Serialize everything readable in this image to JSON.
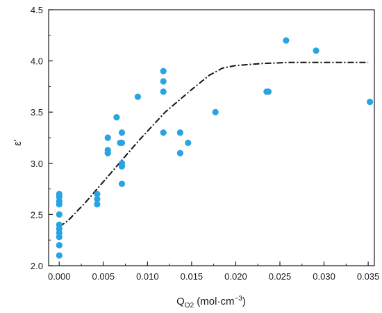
{
  "chart_data": {
    "type": "scatter",
    "xlabel": "Q",
    "xlabel_sub": "O2",
    "xlabel_units": " (mol·cm",
    "xlabel_exp": "−3",
    "xlabel_close": ")",
    "ylabel": "ε'",
    "xlim": [
      -0.0012,
      0.0357
    ],
    "ylim": [
      2.0,
      4.5
    ],
    "xticks": [
      0.0,
      0.005,
      0.01,
      0.015,
      0.02,
      0.025,
      0.03,
      0.035
    ],
    "xtick_labels": [
      "0.000",
      "0.005",
      "0.010",
      "0.015",
      "0.020",
      "0.025",
      "0.030",
      "0.035"
    ],
    "yticks": [
      2.0,
      2.5,
      3.0,
      3.5,
      4.0,
      4.5
    ],
    "ytick_labels": [
      "2.0",
      "2.5",
      "3.0",
      "3.5",
      "4.0",
      "4.5"
    ],
    "grid": false,
    "marker_color": "#29a3e3",
    "fit_color": "#111111",
    "points": [
      {
        "x": 0.0,
        "y": 2.1
      },
      {
        "x": 0.0,
        "y": 2.2
      },
      {
        "x": 0.0,
        "y": 2.28
      },
      {
        "x": 0.0,
        "y": 2.32
      },
      {
        "x": 0.0,
        "y": 2.36
      },
      {
        "x": 0.0,
        "y": 2.4
      },
      {
        "x": 0.0,
        "y": 2.5
      },
      {
        "x": 0.0,
        "y": 2.6
      },
      {
        "x": 0.0,
        "y": 2.63
      },
      {
        "x": 0.0,
        "y": 2.67
      },
      {
        "x": 0.0,
        "y": 2.7
      },
      {
        "x": 0.0043,
        "y": 2.6
      },
      {
        "x": 0.0043,
        "y": 2.65
      },
      {
        "x": 0.0043,
        "y": 2.7
      },
      {
        "x": 0.0055,
        "y": 3.1
      },
      {
        "x": 0.0055,
        "y": 3.13
      },
      {
        "x": 0.0055,
        "y": 3.25
      },
      {
        "x": 0.0065,
        "y": 3.45
      },
      {
        "x": 0.0069,
        "y": 3.2
      },
      {
        "x": 0.0071,
        "y": 2.8
      },
      {
        "x": 0.0071,
        "y": 2.97
      },
      {
        "x": 0.0071,
        "y": 3.0
      },
      {
        "x": 0.0071,
        "y": 3.2
      },
      {
        "x": 0.0071,
        "y": 3.3
      },
      {
        "x": 0.0089,
        "y": 3.65
      },
      {
        "x": 0.0118,
        "y": 3.3
      },
      {
        "x": 0.0118,
        "y": 3.7
      },
      {
        "x": 0.0118,
        "y": 3.8
      },
      {
        "x": 0.0118,
        "y": 3.9
      },
      {
        "x": 0.0137,
        "y": 3.1
      },
      {
        "x": 0.0137,
        "y": 3.3
      },
      {
        "x": 0.0146,
        "y": 3.2
      },
      {
        "x": 0.0177,
        "y": 3.5
      },
      {
        "x": 0.0235,
        "y": 3.7
      },
      {
        "x": 0.0237,
        "y": 3.7
      },
      {
        "x": 0.0257,
        "y": 4.2
      },
      {
        "x": 0.0291,
        "y": 4.1
      },
      {
        "x": 0.0352,
        "y": 3.6
      }
    ],
    "fit_line": [
      {
        "x": 0.0,
        "y": 2.38
      },
      {
        "x": 0.001,
        "y": 2.44
      },
      {
        "x": 0.003,
        "y": 2.62
      },
      {
        "x": 0.006,
        "y": 2.92
      },
      {
        "x": 0.009,
        "y": 3.22
      },
      {
        "x": 0.012,
        "y": 3.5
      },
      {
        "x": 0.015,
        "y": 3.72
      },
      {
        "x": 0.017,
        "y": 3.86
      },
      {
        "x": 0.0185,
        "y": 3.93
      },
      {
        "x": 0.02,
        "y": 3.955
      },
      {
        "x": 0.023,
        "y": 3.975
      },
      {
        "x": 0.026,
        "y": 3.985
      },
      {
        "x": 0.03,
        "y": 3.985
      },
      {
        "x": 0.035,
        "y": 3.985
      }
    ]
  }
}
